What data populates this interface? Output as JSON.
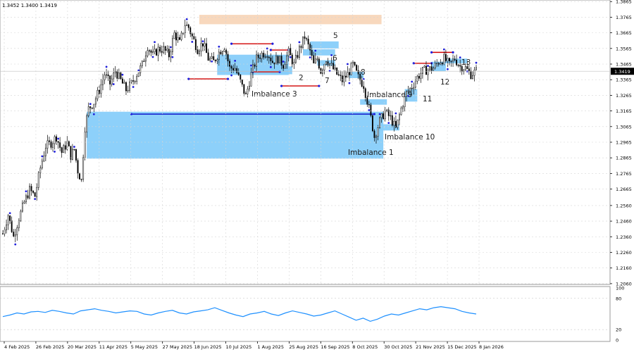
{
  "header": {
    "ohlc_text": "1.3452 1.3400 1.3419"
  },
  "colors": {
    "zone": "#87cefa",
    "zone_top": "#f5cba7",
    "candle": "#000000",
    "level_red": "#d00000",
    "level_blue": "#0000c8",
    "swing_dot": "#1e1edc",
    "rsi_line": "#1e90ff",
    "grid": "#d6d6d6"
  },
  "chart_data": [
    {
      "type": "candlestick",
      "title": "",
      "price_ticks": [
        1.3865,
        1.3765,
        1.3665,
        1.3565,
        1.3465,
        1.3365,
        1.3265,
        1.3165,
        1.3065,
        1.2965,
        1.2865,
        1.2765,
        1.2665,
        1.256,
        1.246,
        1.236,
        1.226,
        1.216,
        1.206
      ],
      "ylim": [
        1.2055,
        1.3875
      ],
      "current_price": 1.3419,
      "date_labels": [
        "4 Feb 2025",
        "26 Feb 2025",
        "20 Mar 2025",
        "11 Apr 2025",
        "5 May 2025",
        "27 May 2025",
        "18 Jun 2025",
        "10 Jul 2025",
        "1 Aug 2025",
        "25 Aug 2025",
        "16 Sep 2025",
        "8 Oct 2025",
        "30 Oct 2025",
        "21 Nov 2025",
        "15 Dec 2025",
        "8 Jan 2026"
      ],
      "close_path": [
        [
          0,
          1.238
        ],
        [
          3,
          1.25
        ],
        [
          6,
          1.236
        ],
        [
          9,
          1.248
        ],
        [
          12,
          1.258
        ],
        [
          15,
          1.266
        ],
        [
          18,
          1.262
        ],
        [
          21,
          1.28
        ],
        [
          24,
          1.294
        ],
        [
          27,
          1.296
        ],
        [
          30,
          1.3
        ],
        [
          33,
          1.29
        ],
        [
          36,
          1.296
        ],
        [
          38,
          1.288
        ],
        [
          40,
          1.292
        ],
        [
          42,
          1.278
        ],
        [
          44,
          1.272
        ],
        [
          46,
          1.306
        ],
        [
          48,
          1.318
        ],
        [
          51,
          1.322
        ],
        [
          54,
          1.33
        ],
        [
          57,
          1.34
        ],
        [
          60,
          1.334
        ],
        [
          63,
          1.342
        ],
        [
          66,
          1.336
        ],
        [
          69,
          1.33
        ],
        [
          72,
          1.334
        ],
        [
          75,
          1.34
        ],
        [
          78,
          1.346
        ],
        [
          81,
          1.358
        ],
        [
          84,
          1.352
        ],
        [
          87,
          1.356
        ],
        [
          90,
          1.356
        ],
        [
          93,
          1.352
        ],
        [
          96,
          1.366
        ],
        [
          99,
          1.36
        ],
        [
          102,
          1.372
        ],
        [
          104,
          1.37
        ],
        [
          106,
          1.364
        ],
        [
          109,
          1.356
        ],
        [
          112,
          1.36
        ],
        [
          115,
          1.35
        ],
        [
          118,
          1.348
        ],
        [
          121,
          1.354
        ],
        [
          124,
          1.358
        ],
        [
          127,
          1.344
        ],
        [
          130,
          1.344
        ],
        [
          133,
          1.335
        ],
        [
          136,
          1.326
        ],
        [
          139,
          1.34
        ],
        [
          142,
          1.35
        ],
        [
          145,
          1.353
        ],
        [
          148,
          1.354
        ],
        [
          151,
          1.348
        ],
        [
          154,
          1.35
        ],
        [
          157,
          1.346
        ],
        [
          160,
          1.354
        ],
        [
          163,
          1.346
        ],
        [
          166,
          1.356
        ],
        [
          169,
          1.364
        ],
        [
          172,
          1.355
        ],
        [
          174,
          1.346
        ],
        [
          176,
          1.35
        ],
        [
          178,
          1.342
        ],
        [
          181,
          1.35
        ],
        [
          184,
          1.345
        ],
        [
          187,
          1.34
        ],
        [
          190,
          1.336
        ],
        [
          193,
          1.34
        ],
        [
          196,
          1.346
        ],
        [
          199,
          1.338
        ],
        [
          202,
          1.333
        ],
        [
          205,
          1.318
        ],
        [
          208,
          1.3
        ],
        [
          211,
          1.31
        ],
        [
          214,
          1.316
        ],
        [
          217,
          1.312
        ],
        [
          220,
          1.305
        ],
        [
          223,
          1.318
        ],
        [
          226,
          1.328
        ],
        [
          229,
          1.332
        ],
        [
          232,
          1.338
        ],
        [
          235,
          1.342
        ],
        [
          238,
          1.343
        ],
        [
          241,
          1.344
        ],
        [
          244,
          1.348
        ],
        [
          247,
          1.35
        ],
        [
          250,
          1.346
        ],
        [
          253,
          1.35
        ],
        [
          256,
          1.345
        ],
        [
          259,
          1.344
        ],
        [
          262,
          1.34
        ],
        [
          265,
          1.342
        ]
      ],
      "rsi": {
        "ylim": [
          0,
          100
        ],
        "ticks": [
          100,
          80,
          20,
          0
        ],
        "values": [
          45,
          48,
          52,
          50,
          54,
          55,
          53,
          57,
          55,
          52,
          50,
          56,
          58,
          60,
          57,
          55,
          52,
          54,
          56,
          55,
          50,
          48,
          52,
          55,
          57,
          52,
          50,
          54,
          56,
          58,
          62,
          57,
          52,
          48,
          45,
          50,
          52,
          55,
          50,
          47,
          52,
          56,
          53,
          50,
          46,
          48,
          52,
          56,
          50,
          44,
          38,
          42,
          36,
          40,
          46,
          50,
          48,
          52,
          56,
          60,
          58,
          62,
          64,
          62,
          60,
          55,
          52,
          50
        ]
      },
      "zones": [
        {
          "label": "Imbalance 1",
          "from": 47,
          "to": 213,
          "top": 1.316,
          "bottom": 1.286
        },
        {
          "label": "",
          "from": 110,
          "to": 212,
          "top": 1.378,
          "bottom": 1.372
        },
        {
          "label": "5",
          "from": 172,
          "to": 188,
          "top": 1.361,
          "bottom": 1.3565
        },
        {
          "label": "6",
          "from": 168,
          "to": 186,
          "top": 1.356,
          "bottom": 1.352
        },
        {
          "label": "Imbalance 3",
          "from": 120,
          "to": 160,
          "top": 1.3525,
          "bottom": 1.3395
        },
        {
          "label": "2",
          "from": 150,
          "to": 162,
          "top": 1.345,
          "bottom": 1.34
        },
        {
          "label": "7",
          "from": 176,
          "to": 186,
          "top": 1.349,
          "bottom": 1.3455
        },
        {
          "label": "8",
          "from": 194,
          "to": 202,
          "top": 1.3415,
          "bottom": 1.3375
        },
        {
          "label": "Imbalance 9",
          "from": 200,
          "to": 215,
          "top": 1.324,
          "bottom": 1.3205
        },
        {
          "label": "Imbalance 10",
          "from": 208,
          "to": 222,
          "top": 1.308,
          "bottom": 1.304
        },
        {
          "label": "11",
          "from": 225,
          "to": 232,
          "top": 1.3305,
          "bottom": 1.3225
        },
        {
          "label": "12",
          "from": 240,
          "to": 248,
          "top": 1.348,
          "bottom": 1.342
        },
        {
          "label": "13",
          "from": 248,
          "to": 260,
          "top": 1.35,
          "bottom": 1.347
        }
      ],
      "levels": [
        {
          "color": "red",
          "from": 104,
          "to": 126,
          "price": 1.337
        },
        {
          "color": "red",
          "from": 128,
          "to": 151,
          "price": 1.3595
        },
        {
          "color": "red",
          "from": 140,
          "to": 155,
          "price": 1.3415
        },
        {
          "color": "red",
          "from": 150,
          "to": 160,
          "price": 1.3555
        },
        {
          "color": "red",
          "from": 156,
          "to": 177,
          "price": 1.3325
        },
        {
          "color": "red",
          "from": 230,
          "to": 240,
          "price": 1.347
        },
        {
          "color": "red",
          "from": 240,
          "to": 252,
          "price": 1.354
        },
        {
          "color": "blue",
          "from": 72,
          "to": 208,
          "price": 1.3145
        }
      ]
    }
  ]
}
